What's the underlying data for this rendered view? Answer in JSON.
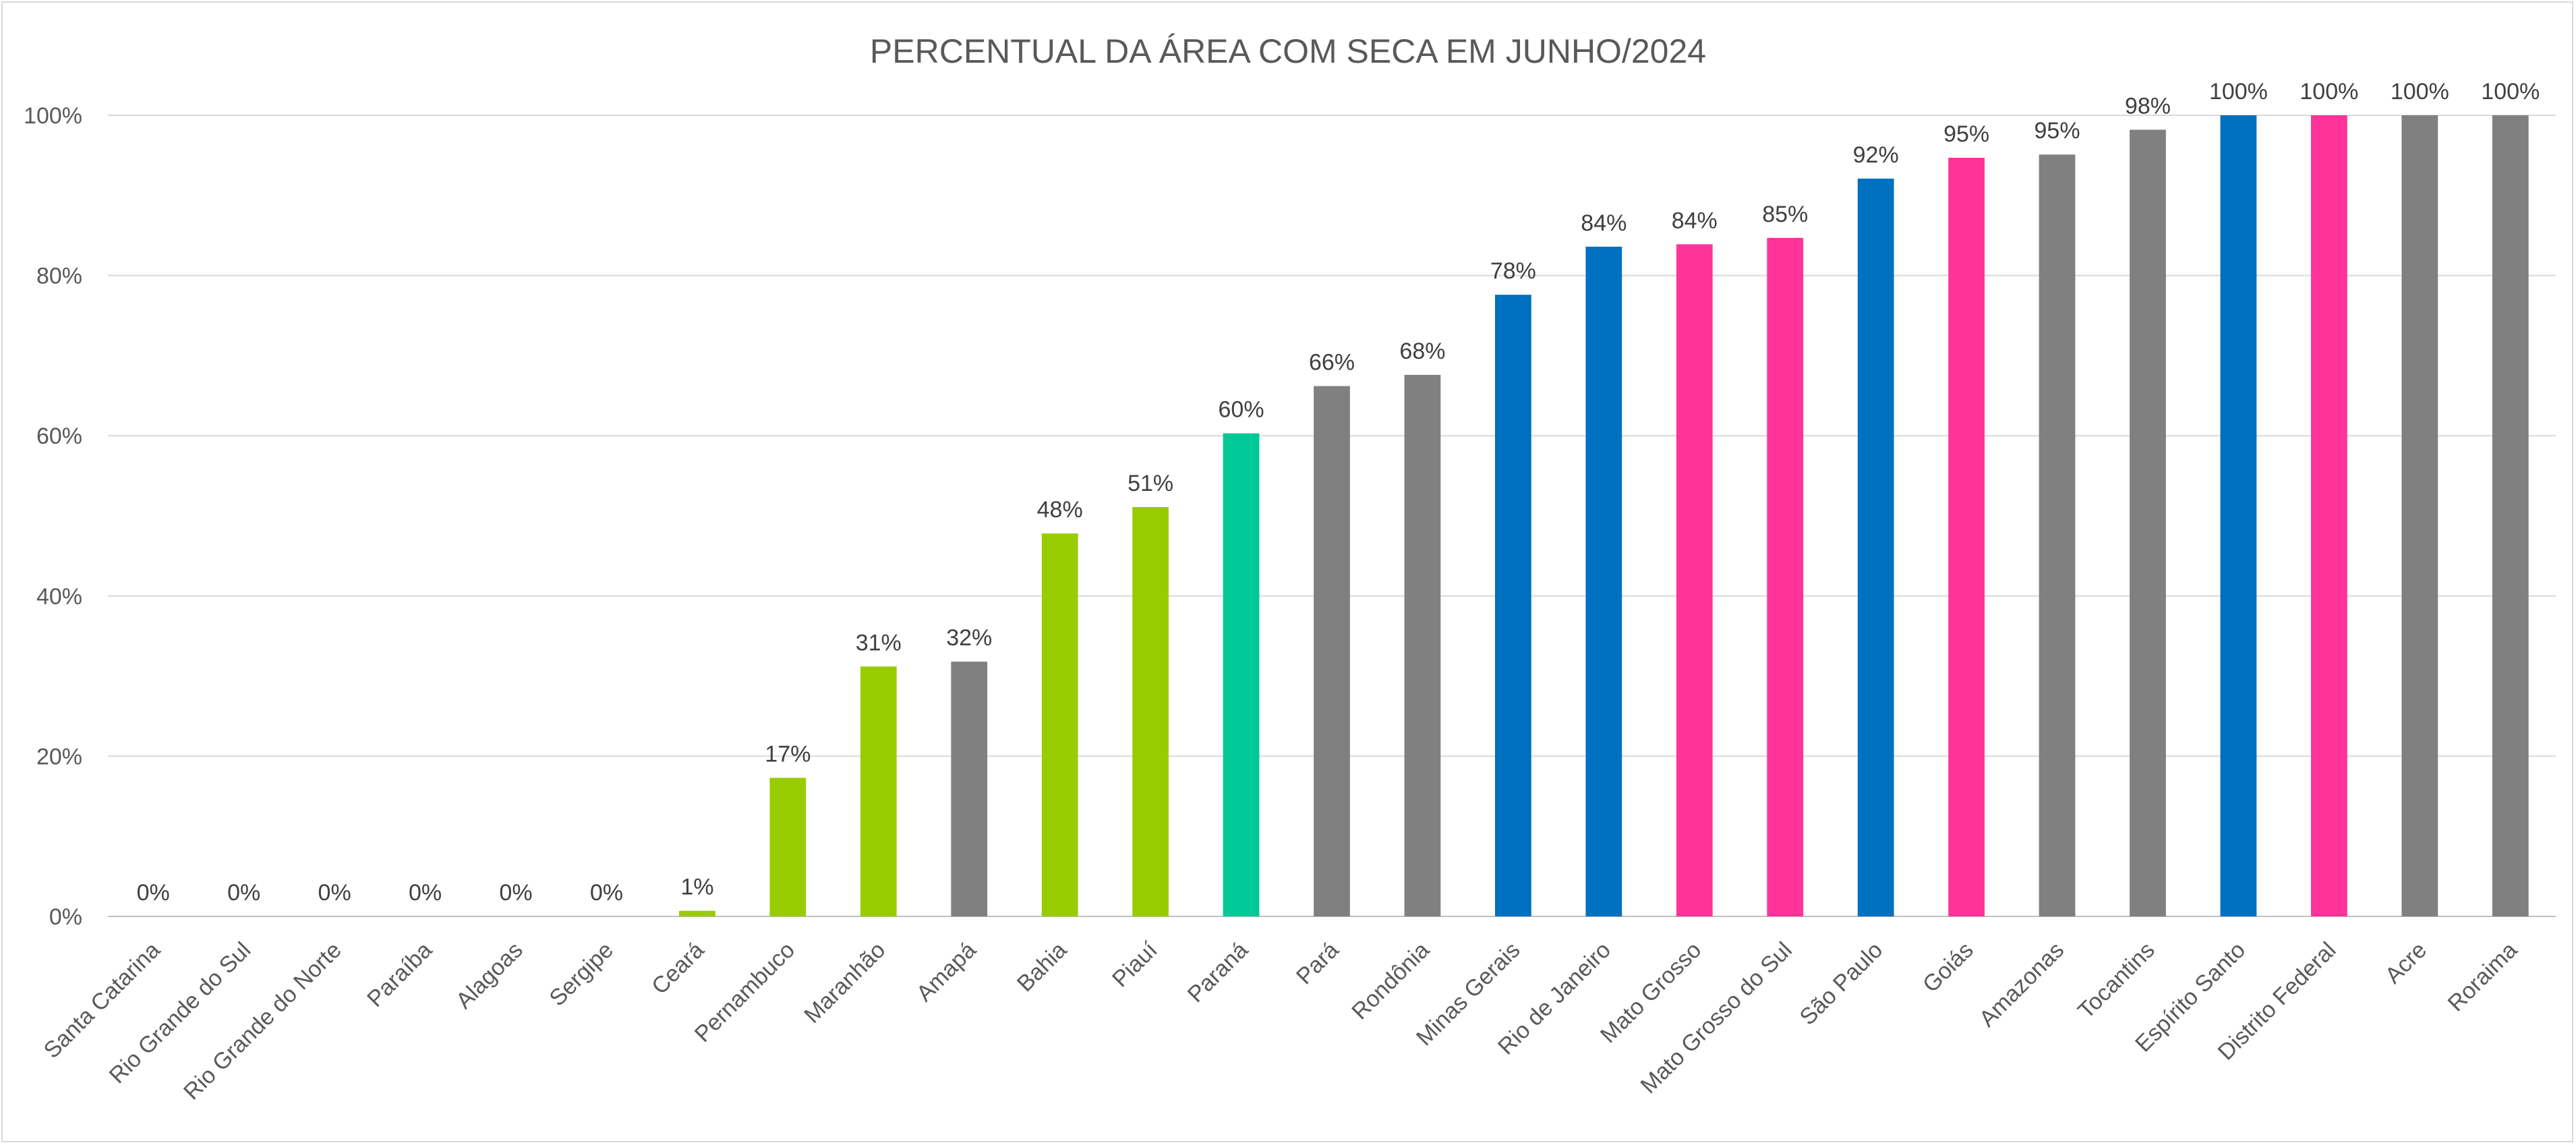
{
  "chart_data": {
    "type": "bar",
    "title": "PERCENTUAL DA ÁREA COM SECA EM JUNHO/2024",
    "xlabel": "",
    "ylabel": "",
    "ylim": [
      0,
      100
    ],
    "yticks": [
      0,
      20,
      40,
      60,
      80,
      100
    ],
    "ytick_labels": [
      "0%",
      "20%",
      "40%",
      "60%",
      "80%",
      "100%"
    ],
    "grid": true,
    "legend": "none",
    "categories": [
      "Santa Catarina",
      "Rio Grande do Sul",
      "Rio Grande do Norte",
      "Paraíba",
      "Alagoas",
      "Sergipe",
      "Ceará",
      "Pernambuco",
      "Maranhão",
      "Amapá",
      "Bahia",
      "Piauí",
      "Paraná",
      "Pará",
      "Rondônia",
      "Minas Gerais",
      "Rio de Janeiro",
      "Mato Grosso",
      "Mato Grosso do Sul",
      "São Paulo",
      "Goiás",
      "Amazonas",
      "Tocantins",
      "Espírito Santo",
      "Distrito Federal",
      "Acre",
      "Roraima"
    ],
    "values": [
      0,
      0,
      0,
      0,
      0,
      0,
      0.7,
      17.3,
      31.2,
      31.8,
      47.8,
      51.1,
      60.3,
      66.2,
      67.6,
      77.6,
      83.6,
      83.9,
      84.7,
      92.1,
      94.7,
      95.1,
      98.2,
      100,
      100,
      100,
      100
    ],
    "data_labels": [
      "0%",
      "0%",
      "0%",
      "0%",
      "0%",
      "0%",
      "1%",
      "17%",
      "31%",
      "32%",
      "48%",
      "51%",
      "60%",
      "66%",
      "68%",
      "78%",
      "84%",
      "84%",
      "85%",
      "92%",
      "95%",
      "95%",
      "98%",
      "100%",
      "100%",
      "100%",
      "100%"
    ],
    "bar_colors": [
      "#99cc00",
      "#99cc00",
      "#99cc00",
      "#99cc00",
      "#99cc00",
      "#99cc00",
      "#99cc00",
      "#99cc00",
      "#99cc00",
      "#808080",
      "#99cc00",
      "#99cc00",
      "#00c896",
      "#808080",
      "#808080",
      "#0070c0",
      "#0070c0",
      "#ff3399",
      "#ff3399",
      "#0070c0",
      "#ff3399",
      "#808080",
      "#808080",
      "#0070c0",
      "#ff3399",
      "#808080",
      "#808080"
    ],
    "colors": {
      "text": "#595959",
      "grid": "#d9d9d9",
      "axis": "#bfbfbf"
    }
  }
}
